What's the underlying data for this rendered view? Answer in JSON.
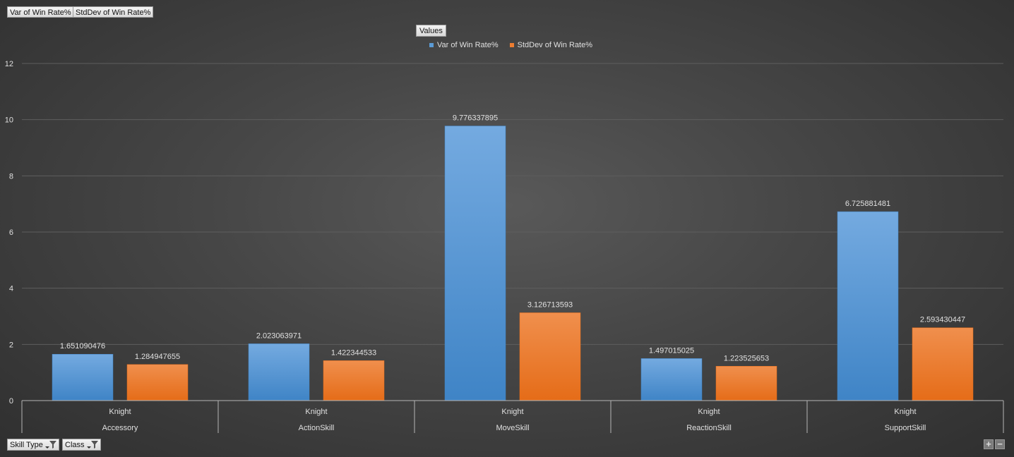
{
  "field_buttons": [
    "Var of Win Rate%",
    "StdDev of Win Rate%"
  ],
  "values_button": "Values",
  "axis_buttons": [
    {
      "label": "Skill Type",
      "icon": "filter-dropdown-icon"
    },
    {
      "label": "Class",
      "icon": "filter-dropdown-icon"
    }
  ],
  "zoom": {
    "expand": "+",
    "collapse": "−"
  },
  "colors": {
    "series1": "#5b9bd5",
    "series1_light": "#74aae0",
    "series1_dark": "#3f84c6",
    "series2": "#ed7d31",
    "series2_light": "#f08f4d",
    "series2_dark": "#e56c18",
    "gridline": "#5e5e5e",
    "axis_line": "#b5b5b5",
    "text": "#e0e0e0"
  },
  "chart_data": {
    "type": "bar",
    "categories": [
      {
        "inner": "Knight",
        "outer": "Accessory"
      },
      {
        "inner": "Knight",
        "outer": "ActionSkill"
      },
      {
        "inner": "Knight",
        "outer": "MoveSkill"
      },
      {
        "inner": "Knight",
        "outer": "ReactionSkill"
      },
      {
        "inner": "Knight",
        "outer": "SupportSkill"
      }
    ],
    "series": [
      {
        "name": "Var of Win Rate%",
        "values": [
          1.651090476,
          2.023063971,
          9.776337895,
          1.497015025,
          6.725881481
        ],
        "labels": [
          "1.651090476",
          "2.023063971",
          "9.776337895",
          "1.497015025",
          "6.725881481"
        ]
      },
      {
        "name": "StdDev of Win Rate%",
        "values": [
          1.284947655,
          1.422344533,
          3.126713593,
          1.223525653,
          2.593430447
        ],
        "labels": [
          "1.284947655",
          "1.422344533",
          "3.126713593",
          "1.223525653",
          "2.593430447"
        ]
      }
    ],
    "ylim": [
      0,
      12
    ],
    "yticks": [
      0,
      2,
      4,
      6,
      8,
      10,
      12
    ],
    "grid": true,
    "legend_position": "top-center"
  }
}
